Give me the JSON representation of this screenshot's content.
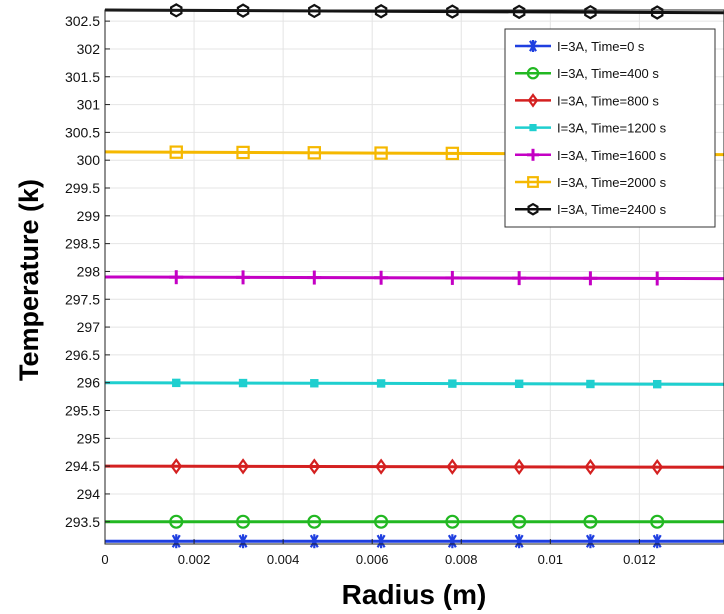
{
  "chart_data": {
    "type": "line",
    "xlabel": "Radius (m)",
    "ylabel": "Temperature (k)",
    "xlim": [
      0,
      0.0139
    ],
    "ylim": [
      293.1,
      302.7
    ],
    "x_ticks": [
      0,
      0.002,
      0.004,
      0.006,
      0.008,
      0.01,
      0.012
    ],
    "x_tick_labels": [
      "0",
      "0.002",
      "0.004",
      "0.006",
      "0.008",
      "0.01",
      "0.012"
    ],
    "y_ticks": [
      293.5,
      294,
      294.5,
      295,
      295.5,
      296,
      296.5,
      297,
      297.5,
      298,
      298.5,
      299,
      299.5,
      300,
      300.5,
      301,
      301.5,
      302,
      302.5
    ],
    "y_tick_labels": [
      "293.5",
      "294",
      "294.5",
      "295",
      "295.5",
      "296",
      "296.5",
      "297",
      "297.5",
      "298",
      "298.5",
      "299",
      "299.5",
      "300",
      "300.5",
      "301",
      "301.5",
      "302",
      "302.5"
    ],
    "grid": true,
    "legend_position": "top-right",
    "marker_x": [
      0.0016,
      0.0031,
      0.0047,
      0.0062,
      0.0078,
      0.0093,
      0.0109,
      0.0124
    ],
    "series": [
      {
        "name": "I=3A, Time=0 s",
        "color": "#1f3fe0",
        "marker": "asterisk",
        "x": [
          0,
          0.0139
        ],
        "y": [
          293.15,
          293.15
        ]
      },
      {
        "name": "I=3A, Time=400 s",
        "color": "#22b822",
        "marker": "circle",
        "x": [
          0,
          0.0139
        ],
        "y": [
          293.5,
          293.5
        ]
      },
      {
        "name": "I=3A, Time=800 s",
        "color": "#d42020",
        "marker": "diamond",
        "x": [
          0,
          0.0139
        ],
        "y": [
          294.5,
          294.48
        ]
      },
      {
        "name": "I=3A, Time=1200 s",
        "color": "#1fcfcf",
        "marker": "square-filled",
        "x": [
          0,
          0.0139
        ],
        "y": [
          296.0,
          295.97
        ]
      },
      {
        "name": "I=3A, Time=1600 s",
        "color": "#c400c4",
        "marker": "plus",
        "x": [
          0,
          0.0139
        ],
        "y": [
          297.9,
          297.87
        ]
      },
      {
        "name": "I=3A, Time=2000 s",
        "color": "#f5b800",
        "marker": "square-open",
        "x": [
          0,
          0.0139
        ],
        "y": [
          300.15,
          300.1
        ]
      },
      {
        "name": "I=3A, Time=2400 s",
        "color": "#111111",
        "marker": "hexagon",
        "x": [
          0,
          0.0139
        ],
        "y": [
          302.7,
          302.65
        ]
      }
    ]
  }
}
